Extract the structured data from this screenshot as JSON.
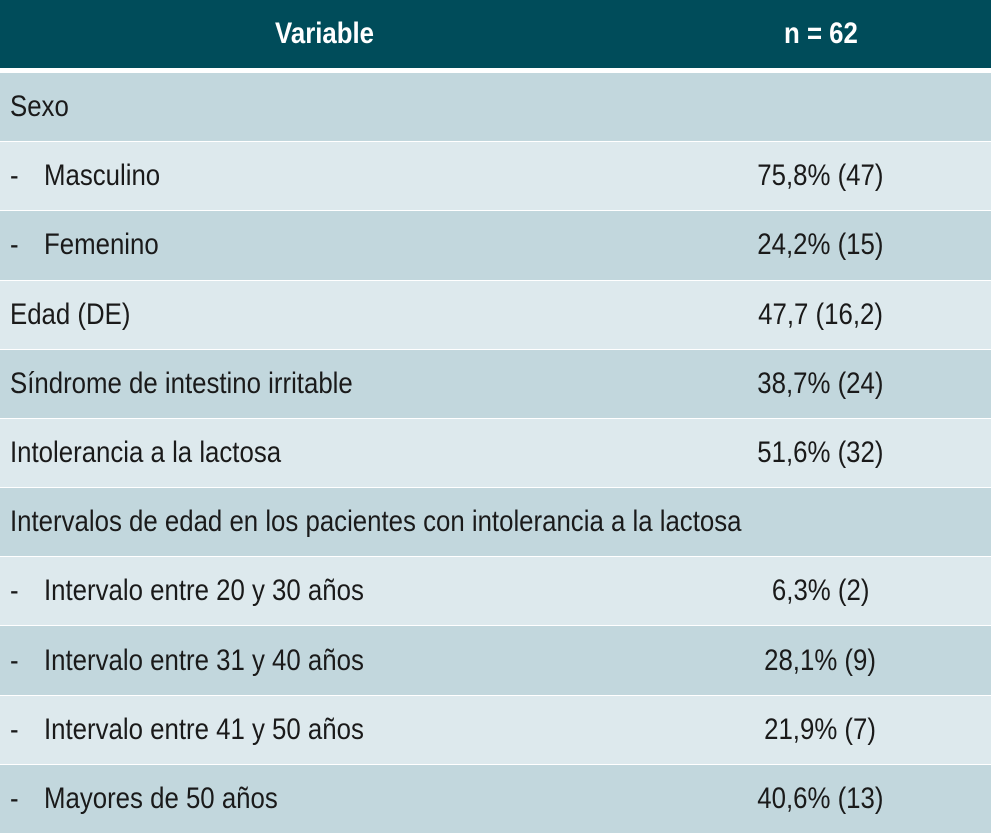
{
  "table": {
    "header": [
      "Variable",
      "n = 62"
    ],
    "rows": [
      {
        "label": "Sexo"
      },
      {
        "bullet": "-",
        "label": "Masculino",
        "value": "75,8% (47)"
      },
      {
        "bullet": "-",
        "label": "Femenino",
        "value": "24,2% (15)"
      },
      {
        "label": "Edad (DE)",
        "value": "47,7 (16,2)"
      },
      {
        "label": "Síndrome de intestino irritable",
        "value": "38,7% (24)"
      },
      {
        "label": "Intolerancia a la lactosa",
        "value": "51,6% (32)"
      },
      {
        "label": "Intervalos de edad en los pacientes con intolerancia a la lactosa"
      },
      {
        "bullet": "-",
        "label": "Intervalo entre 20 y 30 años",
        "value": "6,3% (2)"
      },
      {
        "bullet": "-",
        "label": "Intervalo entre 31 y 40 años",
        "value": "28,1% (9)"
      },
      {
        "bullet": "-",
        "label": "Intervalo entre 41 y 50 años",
        "value": "21,9% (7)"
      },
      {
        "bullet": "-",
        "label": "Mayores de 50 años",
        "value": "40,6% (13)"
      }
    ]
  }
}
